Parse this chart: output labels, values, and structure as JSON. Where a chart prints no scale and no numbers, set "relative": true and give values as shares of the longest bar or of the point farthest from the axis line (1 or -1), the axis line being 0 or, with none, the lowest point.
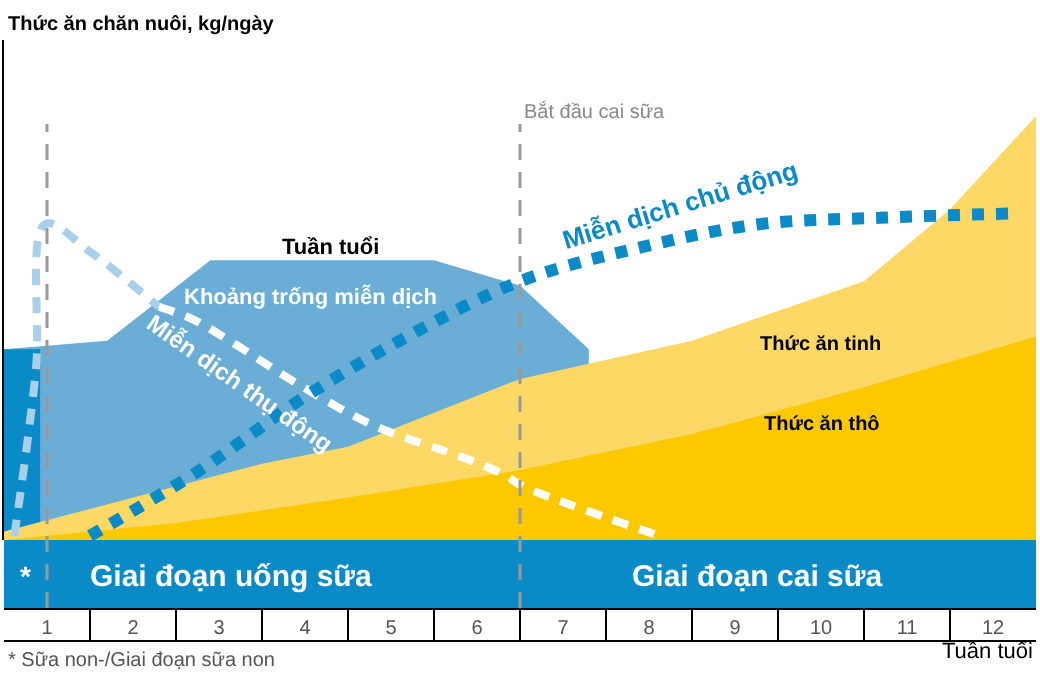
{
  "chart_data": {
    "type": "area",
    "relative": true,
    "ylabel": "Thức ăn chăn nuôi, kg/ngày",
    "xlabel": "Tuần tuổi",
    "xlim": [
      0.5,
      12.5
    ],
    "xticks": [
      1,
      2,
      3,
      4,
      5,
      6,
      7,
      8,
      9,
      10,
      11,
      12
    ],
    "grid": false,
    "series": [
      {
        "color": "#6aaed6",
        "x": [
          0.5,
          1.7,
          2.9,
          5.5,
          6.5,
          7.3
        ],
        "values": [
          0.45,
          0.47,
          0.66,
          0.66,
          0.6,
          0.45
        ]
      },
      {
        "color": "#0a8ac6",
        "x": [
          0.5,
          0.92
        ],
        "values": [
          0.45,
          0.45
        ]
      },
      {
        "color": "#fdd865",
        "x": [
          0.5,
          3.5,
          4.5,
          5.5,
          6.5,
          8.5,
          10.5,
          11.5,
          12.5
        ],
        "values": [
          0.02,
          0.18,
          0.22,
          0.3,
          0.38,
          0.47,
          0.61,
          0.78,
          1
        ]
      },
      {
        "color": "#fcc800",
        "x": [
          0.5,
          2.5,
          4.5,
          6.5,
          8.5,
          10.5,
          12.5
        ],
        "values": [
          0,
          0.04,
          0.1,
          0.165,
          0.25,
          0.36,
          0.48
        ]
      },
      {
        "type": "line",
        "color": "#a9d0ea",
        "line_style": "dashed",
        "x": [
          0.62,
          0.87,
          0.98,
          1.5,
          2.3
        ],
        "values": [
          0.01,
          0.4,
          0.745,
          0.68,
          0.55
        ]
      },
      {
        "type": "line",
        "color": "#ffffff",
        "line_style": "dashed",
        "x": [
          2.3,
          2.7,
          3.2,
          3.9,
          4.8,
          5.9,
          6.35,
          6.5,
          8.06
        ],
        "values": [
          0.55,
          0.52,
          0.46,
          0.37,
          0.27,
          0.19,
          0.15,
          0.13,
          0.014
        ]
      },
      {
        "type": "line",
        "color": "#0a8ac6",
        "line_style": "dotted",
        "x": [
          1.5,
          2.78,
          3.94,
          5.1,
          6.5,
          7.9,
          9.29,
          10.69,
          12.2
        ],
        "values": [
          0.01,
          0.165,
          0.33,
          0.47,
          0.61,
          0.69,
          0.745,
          0.76,
          0.77
        ]
      }
    ],
    "ref_lines": [
      {
        "axis": "x",
        "value": 1,
        "color": "#999999",
        "line_style": "dashed"
      },
      {
        "axis": "x",
        "value": 6.5,
        "label": "Bắt đầu cai sữa",
        "color": "#999999",
        "line_style": "dashed"
      }
    ],
    "annotations": [
      "Tuần tuổi",
      "Khoảng trống miễn dịch",
      "Miễn dịch thụ động",
      "Miễn dịch chủ động",
      "Thức ăn tinh",
      "Thức ăn thô",
      "*",
      "Giai đoạn uống sữa",
      "Giai đoạn cai sữa",
      "* Sữa non-/Giai đoạn sữa non"
    ]
  }
}
